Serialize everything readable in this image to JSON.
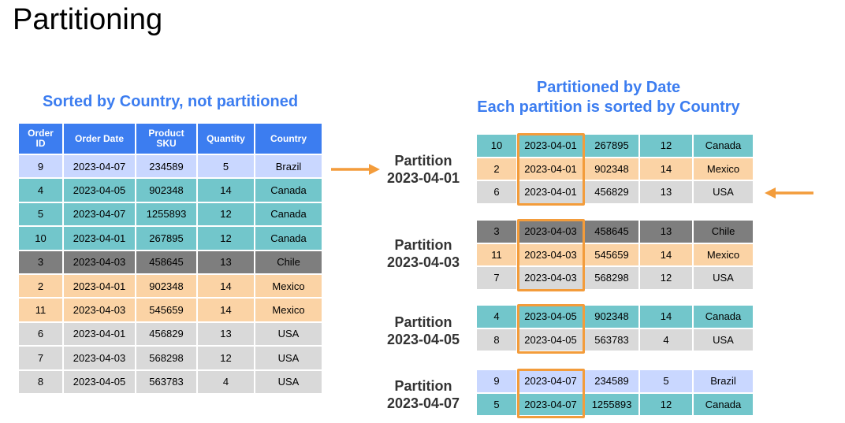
{
  "title": "Partitioning",
  "left": {
    "heading": "Sorted by Country, not partitioned",
    "headers": [
      "Order ID",
      "Order Date",
      "Product SKU",
      "Quantity",
      "Country"
    ],
    "rows": [
      {
        "id": "9",
        "date": "2023-04-07",
        "sku": "234589",
        "qty": "5",
        "country": "Brazil",
        "color": "blue"
      },
      {
        "id": "4",
        "date": "2023-04-05",
        "sku": "902348",
        "qty": "14",
        "country": "Canada",
        "color": "teal"
      },
      {
        "id": "5",
        "date": "2023-04-07",
        "sku": "1255893",
        "qty": "12",
        "country": "Canada",
        "color": "teal"
      },
      {
        "id": "10",
        "date": "2023-04-01",
        "sku": "267895",
        "qty": "12",
        "country": "Canada",
        "color": "teal"
      },
      {
        "id": "3",
        "date": "2023-04-03",
        "sku": "458645",
        "qty": "13",
        "country": "Chile",
        "color": "dark"
      },
      {
        "id": "2",
        "date": "2023-04-01",
        "sku": "902348",
        "qty": "14",
        "country": "Mexico",
        "color": "orange"
      },
      {
        "id": "11",
        "date": "2023-04-03",
        "sku": "545659",
        "qty": "14",
        "country": "Mexico",
        "color": "orange"
      },
      {
        "id": "6",
        "date": "2023-04-01",
        "sku": "456829",
        "qty": "13",
        "country": "USA",
        "color": "gray"
      },
      {
        "id": "7",
        "date": "2023-04-03",
        "sku": "568298",
        "qty": "12",
        "country": "USA",
        "color": "gray"
      },
      {
        "id": "8",
        "date": "2023-04-05",
        "sku": "563783",
        "qty": "4",
        "country": "USA",
        "color": "gray"
      }
    ]
  },
  "right": {
    "heading_line1": "Partitioned by Date",
    "heading_line2": "Each partition is sorted by Country",
    "partitions": [
      {
        "label_line1": "Partition",
        "label_line2": "2023-04-01",
        "rows": [
          {
            "id": "10",
            "date": "2023-04-01",
            "sku": "267895",
            "qty": "12",
            "country": "Canada",
            "color": "teal"
          },
          {
            "id": "2",
            "date": "2023-04-01",
            "sku": "902348",
            "qty": "14",
            "country": "Mexico",
            "color": "orange"
          },
          {
            "id": "6",
            "date": "2023-04-01",
            "sku": "456829",
            "qty": "13",
            "country": "USA",
            "color": "gray"
          }
        ]
      },
      {
        "label_line1": "Partition",
        "label_line2": "2023-04-03",
        "rows": [
          {
            "id": "3",
            "date": "2023-04-03",
            "sku": "458645",
            "qty": "13",
            "country": "Chile",
            "color": "dark"
          },
          {
            "id": "11",
            "date": "2023-04-03",
            "sku": "545659",
            "qty": "14",
            "country": "Mexico",
            "color": "orange"
          },
          {
            "id": "7",
            "date": "2023-04-03",
            "sku": "568298",
            "qty": "12",
            "country": "USA",
            "color": "gray"
          }
        ]
      },
      {
        "label_line1": "Partition",
        "label_line2": "2023-04-05",
        "rows": [
          {
            "id": "4",
            "date": "2023-04-05",
            "sku": "902348",
            "qty": "14",
            "country": "Canada",
            "color": "teal"
          },
          {
            "id": "8",
            "date": "2023-04-05",
            "sku": "563783",
            "qty": "4",
            "country": "USA",
            "color": "gray"
          }
        ]
      },
      {
        "label_line1": "Partition",
        "label_line2": "2023-04-07",
        "rows": [
          {
            "id": "9",
            "date": "2023-04-07",
            "sku": "234589",
            "qty": "5",
            "country": "Brazil",
            "color": "blue"
          },
          {
            "id": "5",
            "date": "2023-04-07",
            "sku": "1255893",
            "qty": "12",
            "country": "Canada",
            "color": "teal"
          }
        ]
      }
    ]
  },
  "colors": {
    "header": "#3c7df0",
    "heading_text": "#3c7df0",
    "blue": "#c9d7ff",
    "teal": "#72c6cb",
    "dark": "#7e7e7e",
    "orange": "#fbd3a5",
    "gray": "#d9d9d9",
    "highlight": "#f39c3b"
  },
  "icons": [
    "arrow-right-icon",
    "arrow-left-icon"
  ]
}
